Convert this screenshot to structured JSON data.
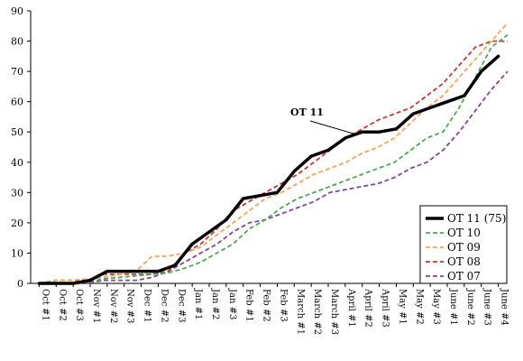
{
  "chart_data": {
    "type": "line",
    "title": "",
    "xlabel": "",
    "ylabel": "",
    "ylim": [
      0,
      90
    ],
    "yticks": [
      0,
      10,
      20,
      30,
      40,
      50,
      60,
      70,
      80,
      90
    ],
    "grid": false,
    "legend_position": "bottom-right",
    "categories": [
      "Oct #1",
      "Oct #2",
      "Oct #3",
      "Nov #1",
      "Nov #2",
      "Nov #3",
      "Dec #1",
      "Dec #2",
      "Dec #3",
      "Jan #1",
      "Jan #2",
      "Jan #3",
      "Feb #1",
      "Feb #2",
      "Feb #3",
      "March #1",
      "March #2",
      "March #3",
      "April #1",
      "April #2",
      "April #3",
      "May #1",
      "May #2",
      "May #3",
      "June #1",
      "June #2",
      "June #3",
      "June #4"
    ],
    "x_index_range": [
      -0.5,
      27.5
    ],
    "series": [
      {
        "name": "OT 11 (75)",
        "color": "#000000",
        "width": 3.5,
        "dash": "",
        "x": [
          0,
          1,
          2,
          3,
          4,
          5,
          6,
          7,
          8,
          9,
          10,
          11,
          12,
          13,
          14,
          15,
          16,
          17,
          18,
          19,
          20,
          21,
          22,
          23,
          24,
          25,
          26,
          27,
          28,
          29,
          30,
          31,
          32,
          33,
          34,
          35,
          36,
          37,
          38
        ],
        "values": [
          0,
          0,
          0,
          1,
          4,
          4,
          4,
          4,
          6,
          13,
          17,
          21,
          28,
          29,
          30,
          37,
          42,
          44,
          48,
          50,
          50,
          51,
          56,
          58,
          60,
          62,
          70,
          75,
          null,
          null,
          null,
          null,
          null,
          null,
          null,
          null,
          null,
          null,
          null
        ]
      }
    ],
    "series_sampled": [
      {
        "name": "OT 10",
        "color": "#55a35a",
        "x": [
          0,
          0.95,
          1.9,
          2.85,
          3.8,
          4.75,
          5.7,
          6.65,
          7.6,
          8.55,
          9.5,
          10.45,
          11.4,
          12.35,
          13.3,
          14.25,
          15.2,
          16.15,
          17.1,
          18.05,
          19,
          19.95,
          20.9,
          21.85,
          22.8,
          23.75,
          24.7,
          25.65,
          26.6,
          27.55
        ],
        "values": [
          0,
          0,
          0,
          0.5,
          1.5,
          2,
          2.5,
          3,
          3.5,
          5,
          7,
          10,
          13,
          18,
          21,
          25,
          28,
          30,
          32,
          34,
          36,
          38,
          40,
          44,
          48,
          50,
          58,
          68,
          78,
          82
        ]
      },
      {
        "name": "OT 09",
        "color": "#f0a45c",
        "x": [
          0,
          0.95,
          1.9,
          2.85,
          3.8,
          4.75,
          5.7,
          6.65,
          7.6,
          8.55,
          9.5,
          10.45,
          11.4,
          12.35,
          13.3,
          14.25,
          15.2,
          16.15,
          17.1,
          18.05,
          19,
          19.95,
          20.9,
          21.85,
          22.8,
          23.75,
          24.7,
          25.65,
          26.6,
          27.55
        ],
        "values": [
          0,
          1,
          1,
          1.5,
          2,
          3,
          4,
          9,
          9,
          10,
          12,
          16,
          20,
          24,
          28,
          30,
          33,
          36,
          38,
          40,
          43,
          45,
          48,
          53,
          58,
          62,
          68,
          74,
          80,
          86
        ]
      },
      {
        "name": "OT 08",
        "color": "#c0393b",
        "x": [
          0,
          0.95,
          1.9,
          2.85,
          3.8,
          4.75,
          5.7,
          6.65,
          7.6,
          8.55,
          9.5,
          10.45,
          11.4,
          12.35,
          13.3,
          14.25,
          15.2,
          16.15,
          17.1,
          18.05,
          19,
          19.95,
          20.9,
          21.85,
          22.8,
          23.75,
          24.7,
          25.65,
          26.6,
          27.55
        ],
        "values": [
          0,
          1,
          1,
          1,
          3,
          3,
          3,
          3,
          4,
          10,
          13,
          18,
          24,
          27,
          30,
          33,
          36,
          40,
          44,
          48,
          51,
          54,
          56,
          58,
          62,
          66,
          72,
          78,
          80,
          80
        ]
      },
      {
        "name": "OT 07",
        "color": "#7e4a8e",
        "x": [
          0,
          0.95,
          1.9,
          2.85,
          3.8,
          4.75,
          5.7,
          6.65,
          7.6,
          8.55,
          9.5,
          10.45,
          11.4,
          12.35,
          13.3,
          14.25,
          15.2,
          16.15,
          17.1,
          18.05,
          19,
          19.95,
          20.9,
          21.85,
          22.8,
          23.75,
          24.7,
          25.65,
          26.6,
          27.55
        ],
        "values": [
          0,
          0,
          0,
          0,
          1,
          1,
          1,
          2,
          4,
          7,
          10,
          13,
          17,
          20,
          21,
          23,
          25,
          27,
          30,
          31,
          32,
          33,
          35,
          38,
          40,
          44,
          50,
          57,
          64,
          70
        ]
      }
    ],
    "annotation": {
      "text": "OT 11",
      "target_index": 18.8,
      "target_value": 48.5
    }
  }
}
